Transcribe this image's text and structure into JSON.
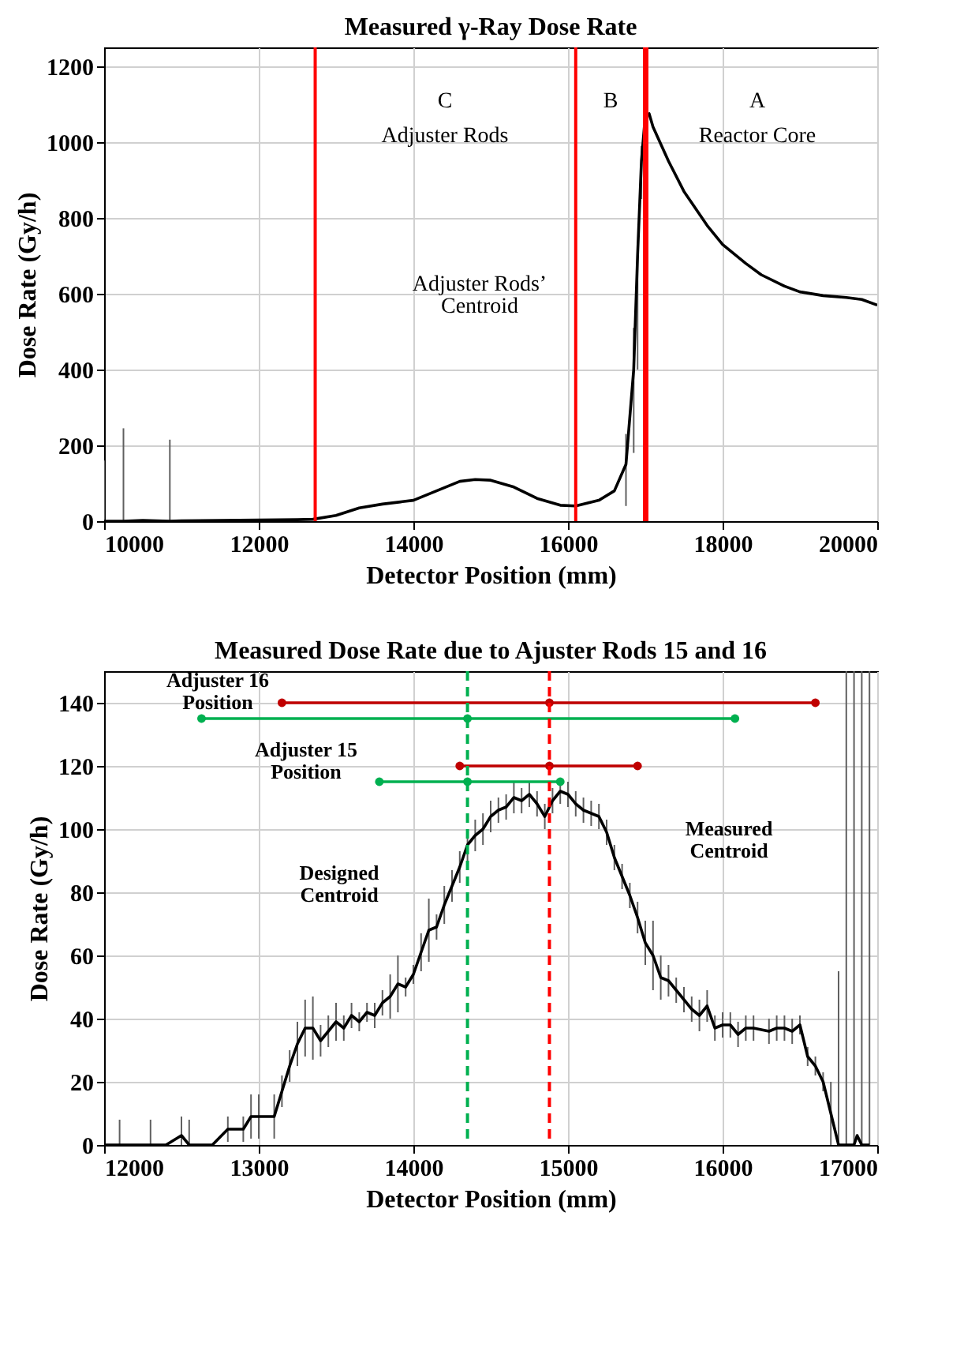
{
  "chart_data": [
    {
      "type": "line",
      "title": "Measured γ-Ray Dose Rate",
      "xlabel": "Detector Position (mm)",
      "ylabel": "Dose Rate (Gy/h)",
      "xlim": [
        10000,
        20000
      ],
      "xticks": [
        10000,
        12000,
        14000,
        16000,
        18000,
        20000
      ],
      "ylim": [
        0,
        1250
      ],
      "yticks": [
        0,
        200,
        400,
        600,
        800,
        1000,
        1200
      ],
      "grid": true,
      "marker": "none",
      "line_style": "solid",
      "series": [
        {
          "color": "#000000",
          "x": [
            10000,
            10250,
            10500,
            10850,
            11000,
            11500,
            12000,
            12500,
            12700,
            13000,
            13300,
            13600,
            14000,
            14300,
            14600,
            14800,
            15000,
            15300,
            15600,
            15900,
            16100,
            16400,
            16600,
            16750,
            16850,
            16900,
            16950,
            17000,
            17050,
            17100,
            17300,
            17500,
            17800,
            18000,
            18300,
            18500,
            18800,
            19000,
            19300,
            19600,
            19800,
            20000
          ],
          "values": [
            0,
            0,
            2,
            0,
            1,
            2,
            3,
            4,
            5,
            15,
            35,
            45,
            55,
            80,
            105,
            110,
            108,
            90,
            60,
            42,
            40,
            55,
            80,
            150,
            400,
            700,
            950,
            1070,
            1075,
            1040,
            950,
            870,
            780,
            730,
            680,
            650,
            620,
            605,
            595,
            590,
            585,
            570
          ],
          "errors": [
            [
              0,
              160
            ],
            [
              0,
              245
            ],
            null,
            [
              0,
              215
            ],
            null,
            null,
            null,
            null,
            null,
            null,
            null,
            null,
            null,
            null,
            null,
            null,
            null,
            null,
            null,
            null,
            null,
            null,
            null,
            [
              40,
              230
            ],
            [
              180,
              510
            ],
            [
              400,
              720
            ],
            [
              850,
              990
            ],
            [
              1000,
              1150
            ],
            null,
            null,
            null,
            null,
            null,
            null,
            null,
            null,
            null,
            null,
            null,
            null,
            null,
            null
          ]
        }
      ],
      "ref_lines": [
        {
          "axis": "x",
          "value": 12730,
          "color": "#ff0000",
          "line_style": "solid"
        },
        {
          "axis": "x",
          "value": 16100,
          "color": "#ff0000",
          "line_style": "solid"
        },
        {
          "axis": "x",
          "value": 16990,
          "color": "#ff0000",
          "line_style": "solid"
        },
        {
          "axis": "x",
          "value": 17020,
          "color": "#ff0000",
          "line_style": "solid"
        }
      ],
      "annotations": [
        "C",
        "Adjuster Rods",
        "B",
        "A",
        "Reactor Core",
        "Adjuster Rods’\nCentroid"
      ]
    },
    {
      "type": "line",
      "title": "Measured Dose Rate due to Ajuster Rods 15 and 16",
      "xlabel": "Detector Position (mm)",
      "ylabel": "Dose Rate (Gy/h)",
      "xlim": [
        12000,
        17000
      ],
      "xticks": [
        12000,
        13000,
        14000,
        15000,
        16000,
        17000
      ],
      "ylim": [
        0,
        150
      ],
      "yticks": [
        0,
        20,
        40,
        60,
        80,
        100,
        120,
        140
      ],
      "grid": true,
      "line_style": "solid",
      "series": [
        {
          "color": "#000000",
          "marker": "none",
          "x": [
            12000,
            12100,
            12200,
            12300,
            12400,
            12500,
            12550,
            12700,
            12800,
            12900,
            12950,
            13000,
            13100,
            13150,
            13200,
            13250,
            13300,
            13350,
            13400,
            13450,
            13500,
            13550,
            13600,
            13650,
            13700,
            13750,
            13800,
            13850,
            13900,
            13950,
            14000,
            14050,
            14100,
            14150,
            14200,
            14250,
            14300,
            14350,
            14400,
            14450,
            14500,
            14550,
            14600,
            14650,
            14700,
            14750,
            14800,
            14850,
            14900,
            14950,
            15000,
            15050,
            15100,
            15150,
            15200,
            15250,
            15300,
            15350,
            15400,
            15450,
            15500,
            15550,
            15600,
            15650,
            15700,
            15750,
            15800,
            15850,
            15900,
            15950,
            16000,
            16050,
            16100,
            16150,
            16200,
            16300,
            16350,
            16400,
            16450,
            16500,
            16550,
            16600,
            16650,
            16700,
            16750,
            16800,
            16850,
            16870,
            16900,
            16950
          ],
          "values": [
            0,
            0,
            0,
            0,
            0,
            3,
            0,
            0,
            5,
            5,
            9,
            9,
            9,
            17,
            25,
            32,
            37,
            37,
            33,
            36,
            39,
            37,
            41,
            39,
            42,
            41,
            45,
            47,
            51,
            50,
            54,
            61,
            68,
            69,
            76,
            82,
            88,
            95,
            98,
            100,
            104,
            106,
            107,
            110,
            109,
            111,
            108,
            104,
            109,
            112,
            111,
            108,
            106,
            105,
            104,
            99,
            91,
            85,
            79,
            72,
            64,
            60,
            53,
            52,
            49,
            46,
            43,
            41,
            44,
            37,
            38,
            38,
            35,
            37,
            37,
            36,
            37,
            37,
            36,
            38,
            28,
            25,
            20,
            10,
            0,
            0,
            0,
            3,
            0,
            0
          ],
          "errors": [
            null,
            [
              0,
              8
            ],
            null,
            [
              0,
              8
            ],
            null,
            [
              0,
              9
            ],
            [
              0,
              8
            ],
            null,
            4,
            4,
            7,
            7,
            7,
            5,
            5,
            7,
            9,
            10,
            5,
            5,
            6,
            4,
            4,
            3,
            3,
            4,
            4,
            7,
            9,
            3,
            3,
            6,
            10,
            4,
            6,
            5,
            5,
            5,
            5,
            5,
            5,
            4,
            4,
            5,
            4,
            4,
            4,
            4,
            4,
            4,
            4,
            4,
            4,
            4,
            4,
            4,
            4,
            4,
            4,
            5,
            7,
            11,
            7,
            5,
            4,
            4,
            4,
            5,
            5,
            4,
            4,
            4,
            4,
            4,
            4,
            4,
            4,
            4,
            4,
            3,
            3,
            3,
            3,
            [
              0,
              20
            ],
            [
              0,
              55
            ],
            [
              0,
              150
            ],
            [
              0,
              150
            ],
            null,
            [
              0,
              150
            ],
            [
              0,
              150
            ]
          ]
        },
        {
          "color": "#c00000",
          "marker": "circle",
          "x": [
            13150,
            14880,
            16600
          ],
          "values": [
            140,
            140,
            140
          ]
        },
        {
          "color": "#00b050",
          "marker": "circle",
          "x": [
            12630,
            14350,
            16080
          ],
          "values": [
            135,
            135,
            135
          ]
        },
        {
          "color": "#c00000",
          "marker": "circle",
          "x": [
            14300,
            14880,
            15450
          ],
          "values": [
            120,
            120,
            120
          ]
        },
        {
          "color": "#00b050",
          "marker": "circle",
          "x": [
            13780,
            14350,
            14950
          ],
          "values": [
            115,
            115,
            115
          ]
        }
      ],
      "ref_lines": [
        {
          "axis": "x",
          "value": 14350,
          "color": "#00b050",
          "line_style": "dashed"
        },
        {
          "axis": "x",
          "value": 14880,
          "color": "#ff0000",
          "line_style": "dashed"
        }
      ],
      "annotations": [
        "Adjuster 16\nPosition",
        "Adjuster 15\nPosition",
        "Designed\nCentroid",
        "Measured\nCentroid"
      ]
    }
  ]
}
